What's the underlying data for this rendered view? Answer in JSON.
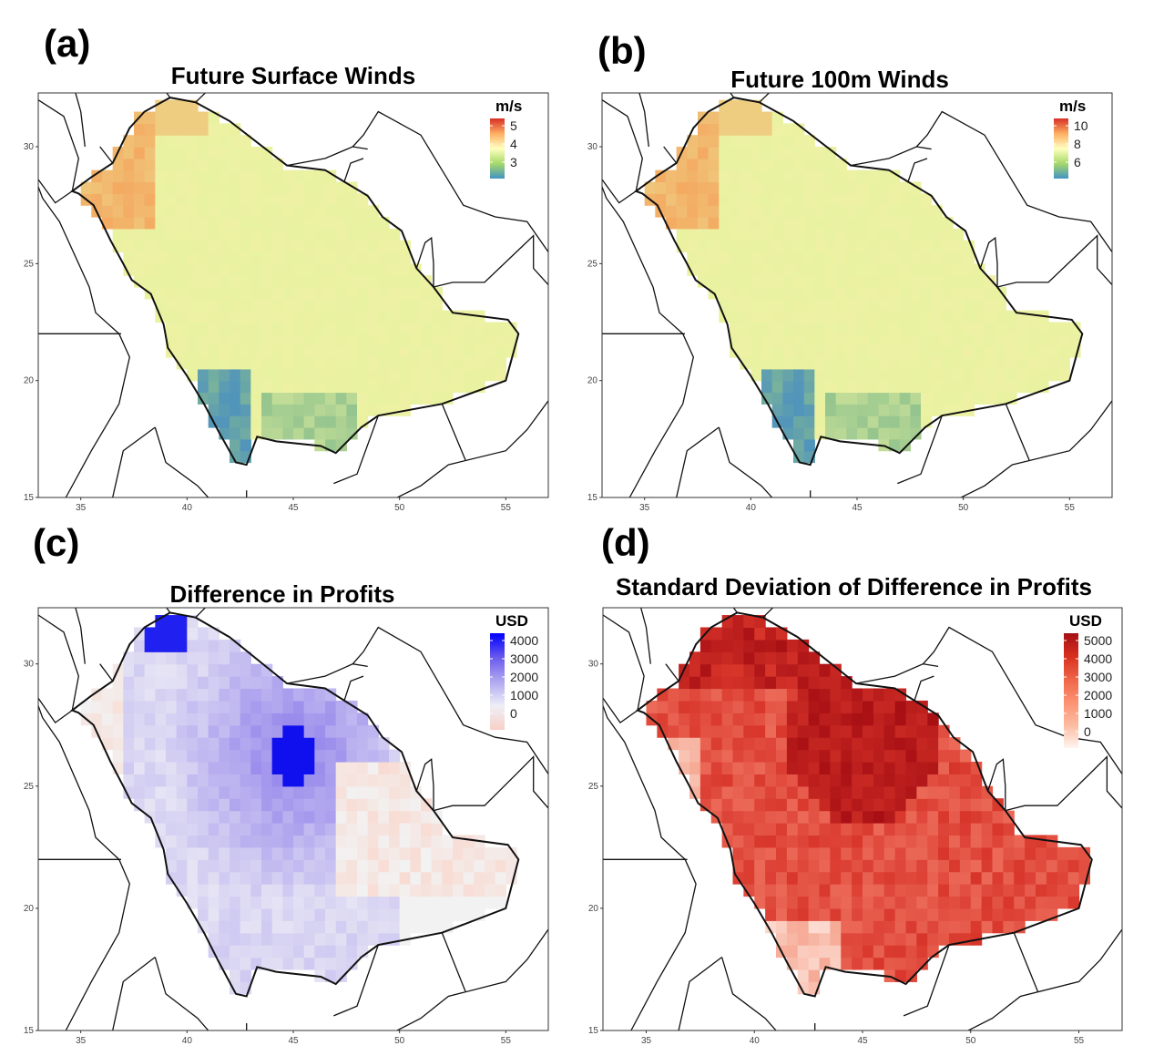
{
  "panels": [
    {
      "label": "(a)",
      "title": "Future Surface Winds",
      "legend": {
        "unit": "m/s",
        "ticks": [
          "5",
          "4",
          "3"
        ],
        "colors": [
          "#d73027",
          "#fdae61",
          "#ffffbf",
          "#a6d96a",
          "#4393c3"
        ]
      },
      "x_ticks": [
        "35",
        "40",
        "45",
        "50",
        "55"
      ],
      "y_ticks": [
        "30",
        "25",
        "20",
        "15"
      ],
      "palette": {
        "base": "#e8f2a0",
        "high": "#f4a860",
        "peak": "#d73027",
        "low": "#8cc08c",
        "lowest": "#4a8fc0"
      }
    },
    {
      "label": "(b)",
      "title": "Future 100m Winds",
      "legend": {
        "unit": "m/s",
        "ticks": [
          "10",
          "8",
          "6"
        ],
        "colors": [
          "#d73027",
          "#fdae61",
          "#ffffbf",
          "#a6d96a",
          "#4393c3"
        ]
      },
      "x_ticks": [
        "35",
        "40",
        "45",
        "50",
        "55"
      ],
      "y_ticks": [
        "30",
        "25",
        "20",
        "15"
      ],
      "palette": {
        "base": "#e8f2a0",
        "high": "#f4a860",
        "peak": "#d73027",
        "low": "#8cc08c",
        "lowest": "#4a8fc0"
      }
    },
    {
      "label": "(c)",
      "title": "Difference in Profits",
      "legend": {
        "unit": "USD",
        "ticks": [
          "4000",
          "3000",
          "2000",
          "1000",
          "0"
        ],
        "colors": [
          "#0000ff",
          "#6a5aee",
          "#b0a8f0",
          "#eeeef6",
          "#f8d0c8"
        ]
      },
      "x_ticks": [
        "35",
        "40",
        "45",
        "50",
        "55"
      ],
      "y_ticks": [
        "30",
        "25",
        "20",
        "15"
      ],
      "palette": {
        "base": "#e6e4f4",
        "high": "#9a8cec",
        "peak": "#1010ee",
        "low": "#f2f2f2",
        "lowest": "#f8dcd4"
      }
    },
    {
      "label": "(d)",
      "title": "Standard Deviation of Difference in Profits",
      "legend": {
        "unit": "USD",
        "ticks": [
          "5000",
          "4000",
          "3000",
          "2000",
          "1000",
          "0"
        ],
        "colors": [
          "#a50f15",
          "#d7301f",
          "#ef6548",
          "#fc9272",
          "#fcbba1",
          "#fff5f0"
        ]
      },
      "x_ticks": [
        "35",
        "40",
        "45",
        "50",
        "55"
      ],
      "y_ticks": [
        "30",
        "25",
        "20",
        "15"
      ],
      "palette": {
        "base": "#ec6a58",
        "high": "#d8352a",
        "peak": "#a80f14",
        "low": "#f6aa96",
        "lowest": "#fde0d6"
      }
    }
  ]
}
